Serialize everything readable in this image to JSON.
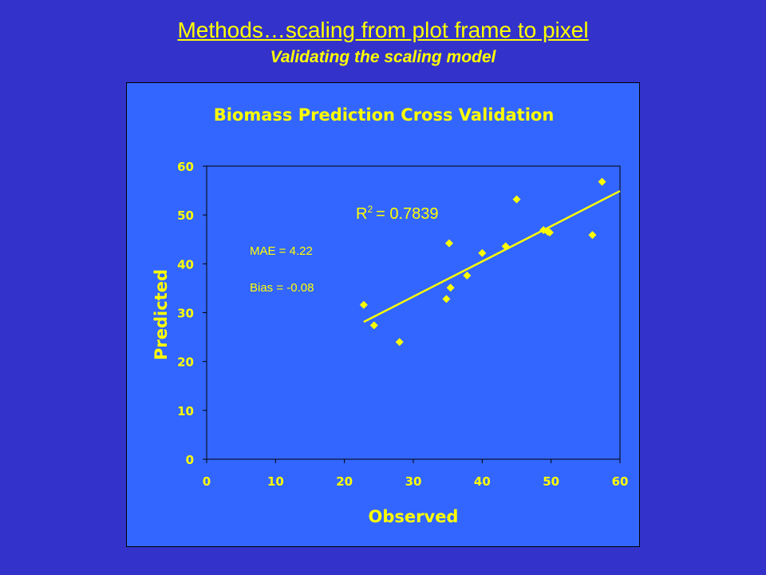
{
  "slide": {
    "title": "Methods…scaling from plot frame to pixel",
    "subtitle": "Validating the scaling model"
  },
  "colors": {
    "background": "#3333cc",
    "chart_background": "#3366ff",
    "foreground": "#ffff00"
  },
  "chart_data": {
    "type": "scatter",
    "title": "Biomass Prediction Cross Validation",
    "xlabel": "Observed",
    "ylabel": "Predicted",
    "xlim": [
      0,
      60
    ],
    "ylim": [
      0,
      60
    ],
    "xticks": [
      0,
      10,
      20,
      30,
      40,
      50,
      60
    ],
    "yticks": [
      0,
      10,
      20,
      30,
      40,
      50,
      60
    ],
    "grid": false,
    "marker": "diamond",
    "points": [
      {
        "x": 22.8,
        "y": 31.6
      },
      {
        "x": 24.3,
        "y": 27.4
      },
      {
        "x": 28.0,
        "y": 24.0
      },
      {
        "x": 34.8,
        "y": 32.8
      },
      {
        "x": 35.2,
        "y": 44.2
      },
      {
        "x": 35.4,
        "y": 35.1
      },
      {
        "x": 37.8,
        "y": 37.6
      },
      {
        "x": 40.0,
        "y": 42.2
      },
      {
        "x": 43.4,
        "y": 43.6
      },
      {
        "x": 45.0,
        "y": 53.2
      },
      {
        "x": 48.9,
        "y": 46.9
      },
      {
        "x": 49.5,
        "y": 46.6
      },
      {
        "x": 49.8,
        "y": 46.4
      },
      {
        "x": 56.0,
        "y": 45.9
      },
      {
        "x": 57.4,
        "y": 56.8
      }
    ],
    "trendline": {
      "x": [
        22.8,
        60
      ],
      "y": [
        28.1,
        54.9
      ]
    },
    "annotations": {
      "r2_label": "R",
      "r2_exp": "2",
      "r2_value": "= 0.7839",
      "mae": "MAE = 4.22",
      "bias": "Bias = -0.08"
    }
  }
}
